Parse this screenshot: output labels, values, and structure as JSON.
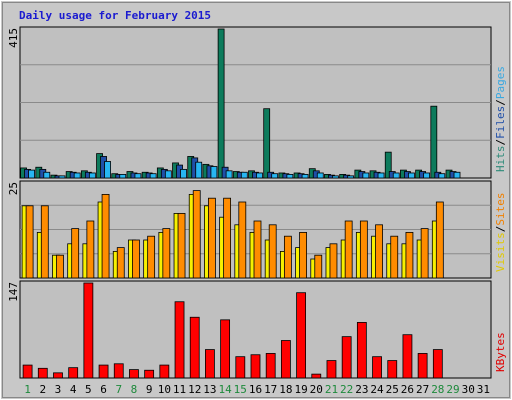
{
  "chart_data": {
    "type": "bar",
    "title": "Daily usage for February 2015",
    "categories": [
      "1",
      "2",
      "3",
      "4",
      "5",
      "6",
      "7",
      "8",
      "9",
      "10",
      "11",
      "12",
      "13",
      "14",
      "15",
      "16",
      "17",
      "18",
      "19",
      "20",
      "21",
      "22",
      "23",
      "24",
      "25",
      "26",
      "27",
      "28",
      "29",
      "30",
      "31"
    ],
    "weekend_days": [
      "1",
      "7",
      "8",
      "14",
      "15",
      "21",
      "22",
      "28",
      "29"
    ],
    "panels": [
      {
        "id": "hits",
        "ymax_label": "415",
        "ymax": 415,
        "grid": true,
        "side_labels": [
          {
            "text": "Hits",
            "color": "#2e8b7a"
          },
          {
            "text": "/",
            "color": "#000000"
          },
          {
            "text": "Files",
            "color": "#1f4fa8"
          },
          {
            "text": "/",
            "color": "#000000"
          },
          {
            "text": "Pages",
            "color": "#3aa8e0"
          }
        ],
        "series": [
          {
            "name": "Hits",
            "color": "#0d7b5c",
            "values": [
              28,
              30,
              8,
              18,
              20,
              68,
              12,
              18,
              16,
              28,
              42,
              60,
              38,
              415,
              18,
              20,
              193,
              14,
              14,
              26,
              10,
              10,
              22,
              20,
              72,
              22,
              22,
              200,
              22,
              0,
              0
            ]
          },
          {
            "name": "Files",
            "color": "#1f4fa8",
            "values": [
              24,
              24,
              6,
              16,
              16,
              60,
              10,
              14,
              14,
              24,
              36,
              56,
              34,
              30,
              16,
              16,
              16,
              12,
              12,
              20,
              8,
              8,
              18,
              16,
              18,
              18,
              18,
              16,
              18,
              0,
              0
            ]
          },
          {
            "name": "Pages",
            "color": "#27b6f2",
            "values": [
              22,
              16,
              6,
              14,
              14,
              46,
              10,
              12,
              12,
              20,
              24,
              44,
              32,
              20,
              16,
              14,
              12,
              10,
              10,
              14,
              6,
              6,
              14,
              14,
              14,
              14,
              14,
              12,
              16,
              0,
              0
            ]
          }
        ]
      },
      {
        "id": "visits",
        "ymax_label": "25",
        "ymax": 25,
        "grid": true,
        "side_labels": [
          {
            "text": "Visits",
            "color": "#e0c800"
          },
          {
            "text": "/",
            "color": "#000000"
          },
          {
            "text": "Sites",
            "color": "#f08000"
          }
        ],
        "series": [
          {
            "name": "Visits",
            "color": "#f7f000",
            "values": [
              19,
              12,
              6,
              9,
              9,
              20,
              7,
              10,
              10,
              12,
              17,
              22,
              19,
              16,
              14,
              12,
              10,
              7,
              8,
              5,
              8,
              10,
              12,
              11,
              9,
              9,
              10,
              15,
              0,
              0,
              0
            ]
          },
          {
            "name": "Sites",
            "color": "#ff8c00",
            "values": [
              19,
              19,
              6,
              13,
              15,
              22,
              8,
              10,
              11,
              13,
              17,
              23,
              21,
              21,
              20,
              15,
              14,
              11,
              12,
              6,
              9,
              15,
              15,
              14,
              11,
              12,
              13,
              20,
              0,
              0,
              0
            ]
          }
        ]
      },
      {
        "id": "kbytes",
        "ymax_label": "147",
        "ymax": 147,
        "grid": false,
        "side_labels": [
          {
            "text": "KBytes",
            "color": "#e00000"
          }
        ],
        "series": [
          {
            "name": "KBytes",
            "color": "#ff0000",
            "values": [
              20,
              15,
              8,
              16,
              147,
              20,
              22,
              13,
              12,
              20,
              118,
              94,
              44,
              90,
              33,
              36,
              38,
              58,
              132,
              6,
              27,
              64,
              86,
              33,
              27,
              67,
              38,
              44,
              0,
              0,
              0
            ]
          }
        ]
      }
    ]
  }
}
